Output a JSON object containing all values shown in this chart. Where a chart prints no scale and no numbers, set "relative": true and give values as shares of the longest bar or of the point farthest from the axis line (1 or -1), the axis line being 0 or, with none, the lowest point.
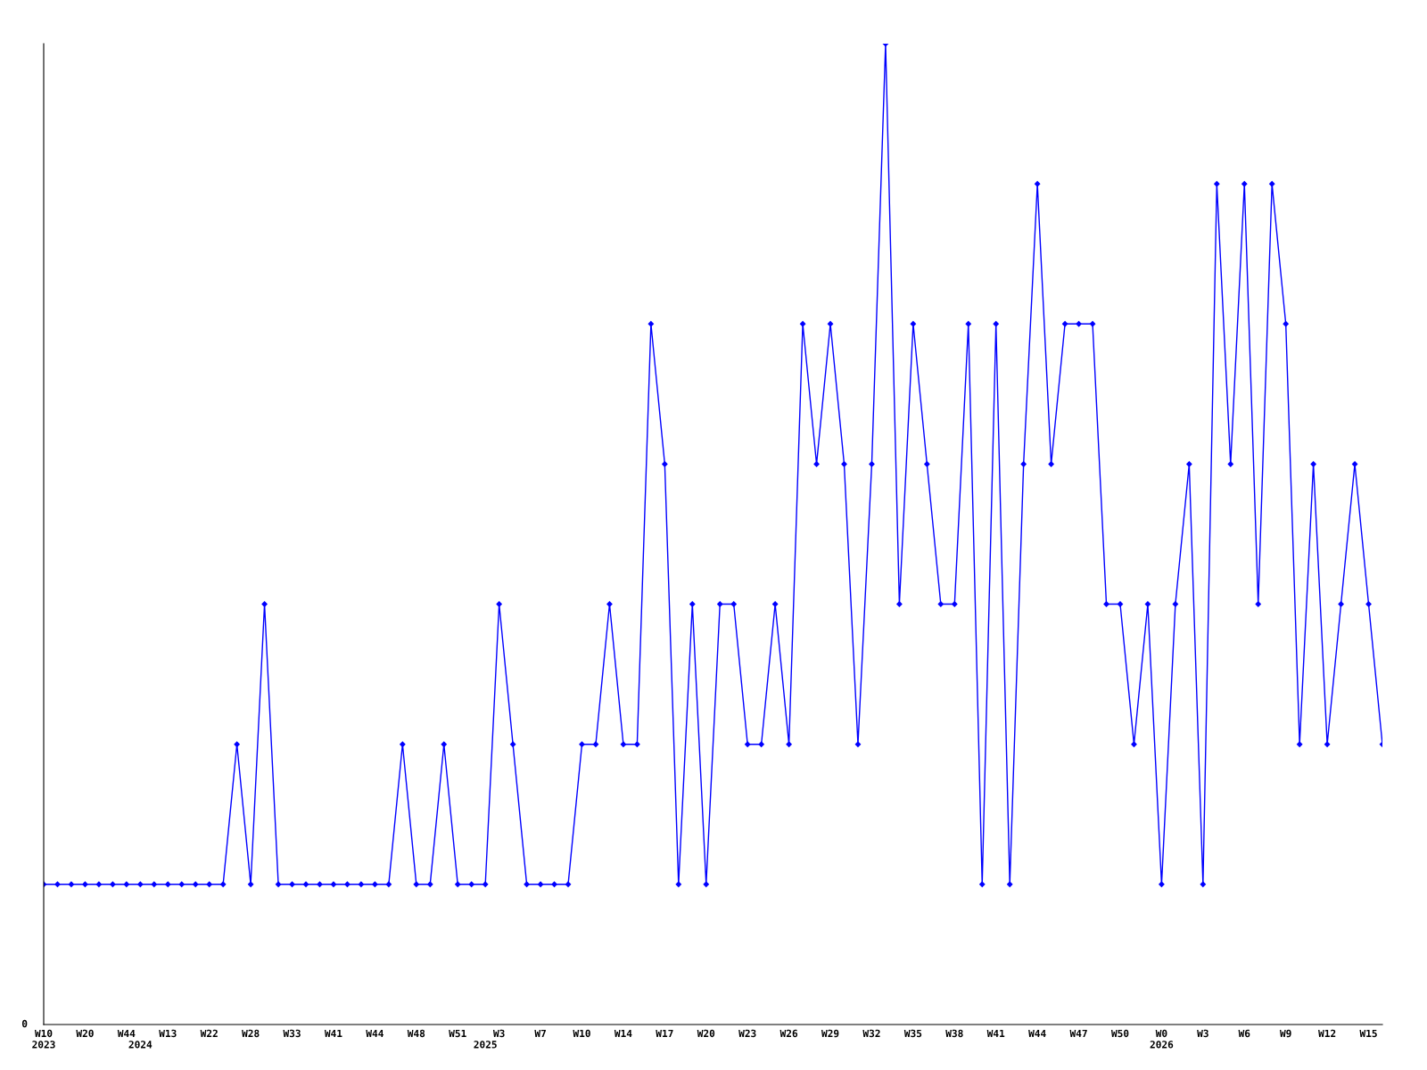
{
  "chart_data": {
    "type": "line",
    "relative": true,
    "marker": "diamond",
    "line_style": "solid",
    "grid": false,
    "legend": false,
    "annotations": [
      "0"
    ],
    "categories": [
      "W10\n2023",
      null,
      null,
      "W20",
      null,
      null,
      "W44",
      "\n2024",
      null,
      "W13",
      null,
      null,
      "W22",
      null,
      null,
      "W28",
      null,
      null,
      "W33",
      null,
      null,
      "W41",
      null,
      null,
      "W44",
      null,
      null,
      "W48",
      null,
      null,
      "W51",
      null,
      "\n2025",
      "W3",
      null,
      null,
      "W7",
      null,
      null,
      "W10",
      null,
      null,
      "W14",
      null,
      null,
      "W17",
      null,
      null,
      "W20",
      null,
      null,
      "W23",
      null,
      null,
      "W26",
      null,
      null,
      "W29",
      null,
      null,
      "W32",
      null,
      null,
      "W35",
      null,
      null,
      "W38",
      null,
      null,
      "W41",
      null,
      null,
      "W44",
      null,
      null,
      "W47",
      null,
      null,
      "W50",
      null,
      null,
      "W0\n2026",
      null,
      null,
      "W3",
      null,
      null,
      "W6",
      null,
      null,
      "W9",
      null,
      null,
      "W12",
      null,
      null,
      "W15",
      null
    ],
    "series": [
      {
        "color": "#0000ff",
        "values": [
          0.1429,
          0.1429,
          0.1429,
          0.1429,
          0.1429,
          0.1429,
          0.1429,
          0.1429,
          0.1429,
          0.1429,
          0.1429,
          0.1429,
          0.1429,
          0.1429,
          0.2857,
          0.1429,
          0.4286,
          0.1429,
          0.1429,
          0.1429,
          0.1429,
          0.1429,
          0.1429,
          0.1429,
          0.1429,
          0.1429,
          0.2857,
          0.1429,
          0.1429,
          0.2857,
          0.1429,
          0.1429,
          0.1429,
          0.4286,
          0.2857,
          0.1429,
          0.1429,
          0.1429,
          0.1429,
          0.2857,
          0.2857,
          0.4286,
          0.2857,
          0.2857,
          0.7143,
          0.5714,
          0.1429,
          0.4286,
          0.1429,
          0.4286,
          0.4286,
          0.2857,
          0.2857,
          0.4286,
          0.2857,
          0.7143,
          0.5714,
          0.7143,
          0.5714,
          0.2857,
          0.5714,
          1,
          0.4286,
          0.7143,
          0.5714,
          0.4286,
          0.4286,
          0.7143,
          0.1429,
          0.7143,
          0.1429,
          0.5714,
          0.8571,
          0.5714,
          0.7143,
          0.7143,
          0.7143,
          0.4286,
          0.4286,
          0.2857,
          0.4286,
          0.1429,
          0.4286,
          0.5714,
          0.1429,
          0.8571,
          0.5714,
          0.8571,
          0.4286,
          0.8571,
          0.7143,
          0.2857,
          0.5714,
          0.2857,
          0.4286,
          0.5714,
          0.4286,
          0.2857
        ]
      }
    ]
  }
}
